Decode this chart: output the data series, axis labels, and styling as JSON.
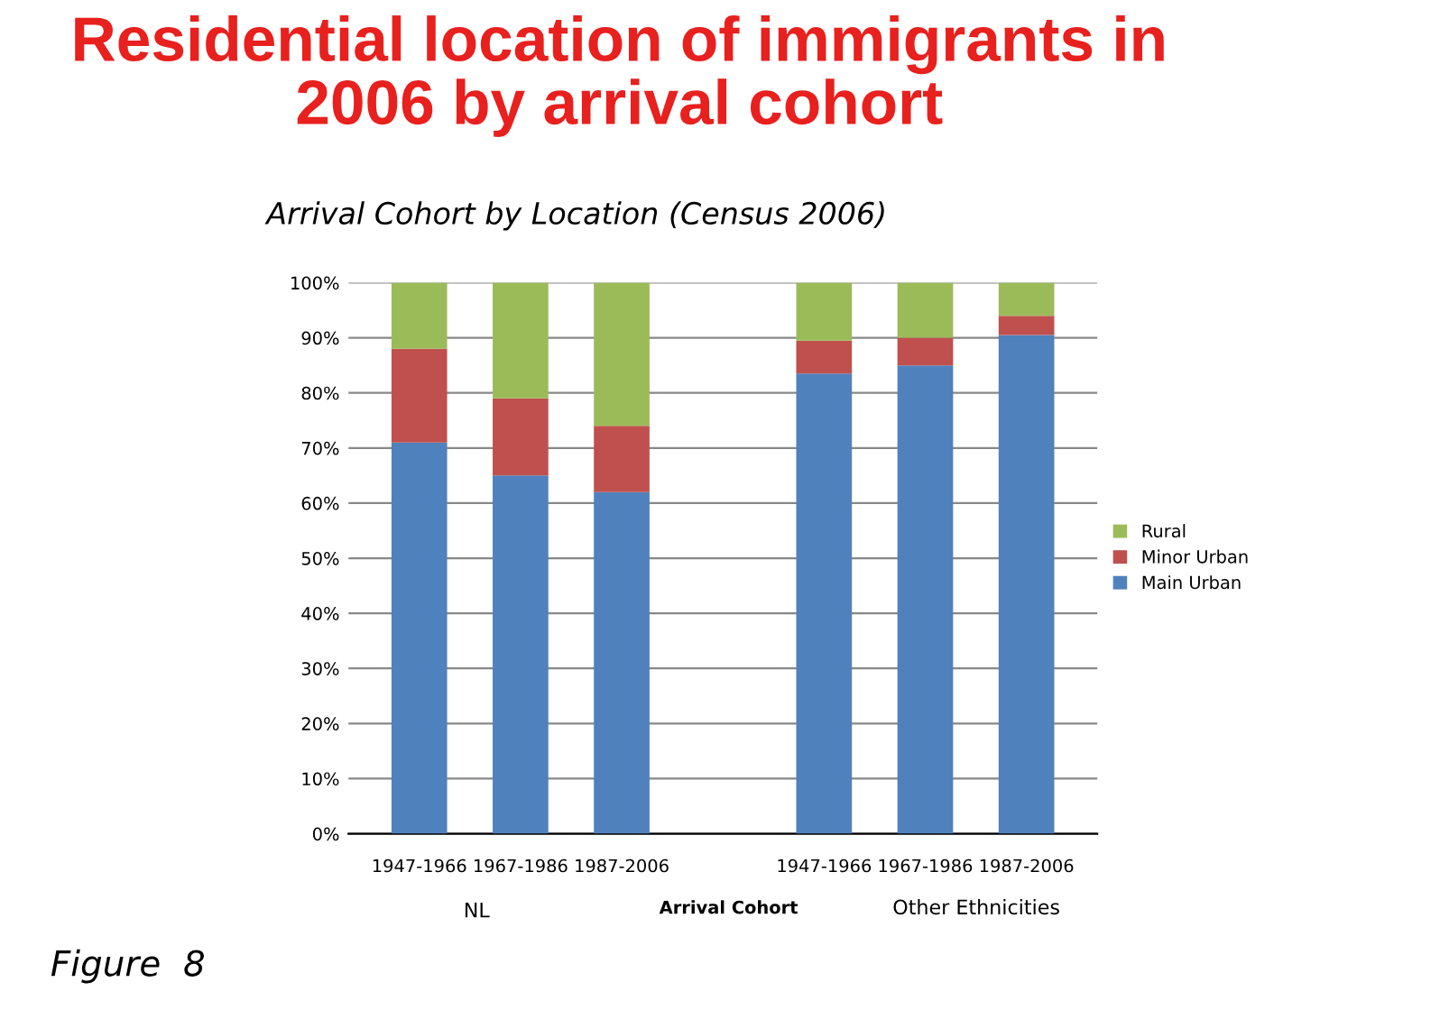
{
  "chart_data": {
    "type": "bar",
    "stacked": true,
    "title": "Residential location of immigrants in 2006 by arrival cohort",
    "subtitle": "Arrival Cohort by Location (Census 2006)",
    "xlabel": "Arrival Cohort",
    "categories": [
      "1947-1966",
      "1967-1986",
      "1987-2006",
      null,
      "1947-1966",
      "1967-1986",
      "1987-2006"
    ],
    "series": [
      {
        "name": "Main Urban",
        "color": "#4f81bd",
        "values": [
          71,
          65,
          62,
          null,
          83.5,
          85,
          90.5
        ]
      },
      {
        "name": "Minor Urban",
        "color": "#c0504d",
        "values": [
          17,
          14,
          12,
          null,
          6,
          5,
          3.5
        ]
      },
      {
        "name": "Rural",
        "color": "#9bbb59",
        "values": [
          12,
          21,
          26,
          null,
          10.5,
          10,
          6
        ]
      }
    ],
    "ylim": [
      0,
      100
    ],
    "yticks": [
      {
        "value": 0,
        "label": "0%"
      },
      {
        "value": 10,
        "label": "10%"
      },
      {
        "value": 20,
        "label": "20%"
      },
      {
        "value": 30,
        "label": "30%"
      },
      {
        "value": 40,
        "label": "40%"
      },
      {
        "value": 50,
        "label": "50%"
      },
      {
        "value": 60,
        "label": "60%"
      },
      {
        "value": 70,
        "label": "70%"
      },
      {
        "value": 80,
        "label": "80%"
      },
      {
        "value": 90,
        "label": "90%"
      },
      {
        "value": 100,
        "label": "100%"
      }
    ],
    "grid": "y",
    "legend": "right",
    "annotations": [
      "NL",
      "Other Ethnicities",
      "Figure  8"
    ]
  }
}
